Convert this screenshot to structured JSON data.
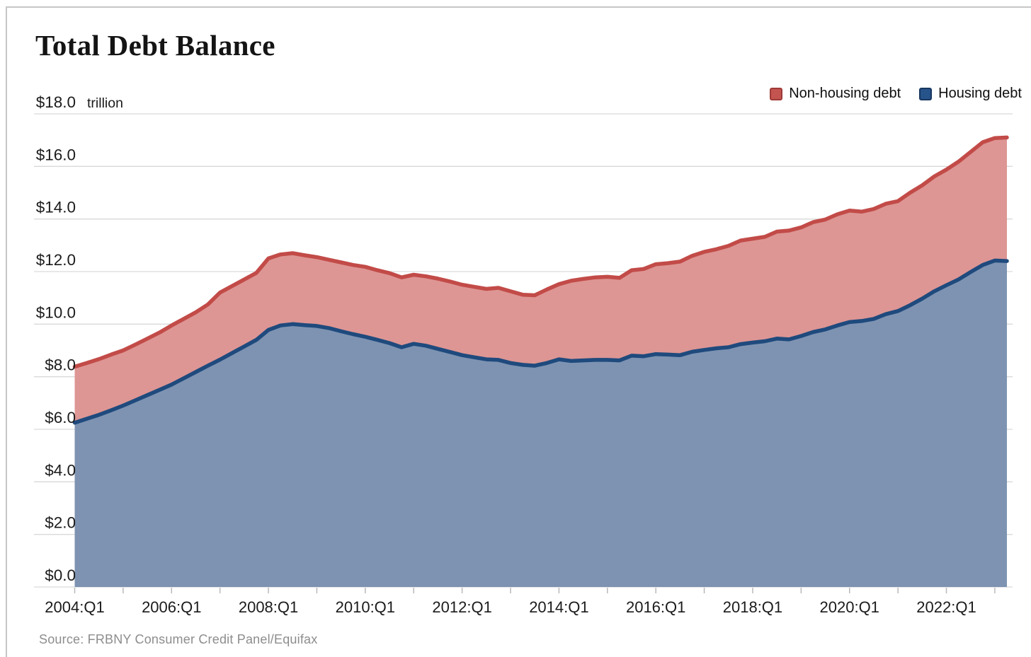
{
  "header": {
    "title": "Total Debt Balance"
  },
  "legend": {
    "items": [
      {
        "label": "Non-housing debt",
        "swatch_fill": "#c4544f",
        "swatch_border": "#9e3a37"
      },
      {
        "label": "Housing debt",
        "swatch_fill": "#27538b",
        "swatch_border": "#17375f"
      }
    ]
  },
  "footer": {
    "source": "Source: FRBNY Consumer Credit Panel/Equifax"
  },
  "chart_data": {
    "type": "area",
    "stacked": true,
    "title": "Total Debt Balance",
    "unit_label": "trillion",
    "x_start": "2004:Q1",
    "x_end": "2023:Q2",
    "points_per_year": 4,
    "n_points": 78,
    "x_tick_labels": [
      "2004:Q1",
      "2006:Q1",
      "2008:Q1",
      "2010:Q1",
      "2012:Q1",
      "2014:Q1",
      "2016:Q1",
      "2018:Q1",
      "2020:Q1",
      "2022:Q1"
    ],
    "y_tick_labels": [
      "$0.0",
      "$2.0",
      "$4.0",
      "$6.0",
      "$8.0",
      "$10.0",
      "$12.0",
      "$14.0",
      "$16.0",
      "$18.0"
    ],
    "ylim": [
      0,
      18
    ],
    "y_step": 2,
    "grid": true,
    "legend_position": "top-right",
    "colors": {
      "grid": "#d9d9d9",
      "tick": "#b9b9b9",
      "axis_text": "#1b1b1b"
    },
    "series": [
      {
        "name": "Housing debt",
        "line_color": "#1f4a7d",
        "fill_color": "#7e93b2",
        "values": [
          6.25,
          6.4,
          6.55,
          6.72,
          6.9,
          7.1,
          7.3,
          7.5,
          7.7,
          7.94,
          8.18,
          8.42,
          8.65,
          8.9,
          9.15,
          9.4,
          9.78,
          9.95,
          10.0,
          9.96,
          9.93,
          9.85,
          9.73,
          9.62,
          9.52,
          9.4,
          9.28,
          9.12,
          9.25,
          9.18,
          9.06,
          8.94,
          8.82,
          8.74,
          8.66,
          8.64,
          8.52,
          8.45,
          8.42,
          8.52,
          8.66,
          8.6,
          8.62,
          8.64,
          8.64,
          8.62,
          8.8,
          8.78,
          8.86,
          8.84,
          8.82,
          8.95,
          9.02,
          9.08,
          9.12,
          9.24,
          9.3,
          9.35,
          9.45,
          9.42,
          9.55,
          9.7,
          9.8,
          9.95,
          10.08,
          10.12,
          10.2,
          10.38,
          10.5,
          10.72,
          10.97,
          11.25,
          11.48,
          11.7,
          11.98,
          12.25,
          12.42,
          12.4
        ]
      },
      {
        "name": "Non-housing debt",
        "line_color": "#c24b48",
        "fill_color": "#dd9694",
        "values": [
          2.13,
          2.12,
          2.12,
          2.12,
          2.1,
          2.12,
          2.15,
          2.18,
          2.25,
          2.26,
          2.27,
          2.33,
          2.55,
          2.55,
          2.55,
          2.55,
          2.72,
          2.7,
          2.7,
          2.66,
          2.62,
          2.6,
          2.62,
          2.63,
          2.66,
          2.65,
          2.66,
          2.66,
          2.63,
          2.64,
          2.67,
          2.68,
          2.68,
          2.68,
          2.68,
          2.74,
          2.73,
          2.67,
          2.68,
          2.8,
          2.86,
          3.05,
          3.1,
          3.14,
          3.16,
          3.14,
          3.25,
          3.32,
          3.42,
          3.48,
          3.56,
          3.65,
          3.73,
          3.77,
          3.86,
          3.94,
          3.95,
          3.97,
          4.07,
          4.14,
          4.13,
          4.18,
          4.18,
          4.23,
          4.24,
          4.16,
          4.18,
          4.2,
          4.18,
          4.28,
          4.31,
          4.37,
          4.4,
          4.48,
          4.57,
          4.67,
          4.66,
          4.7
        ]
      }
    ]
  }
}
